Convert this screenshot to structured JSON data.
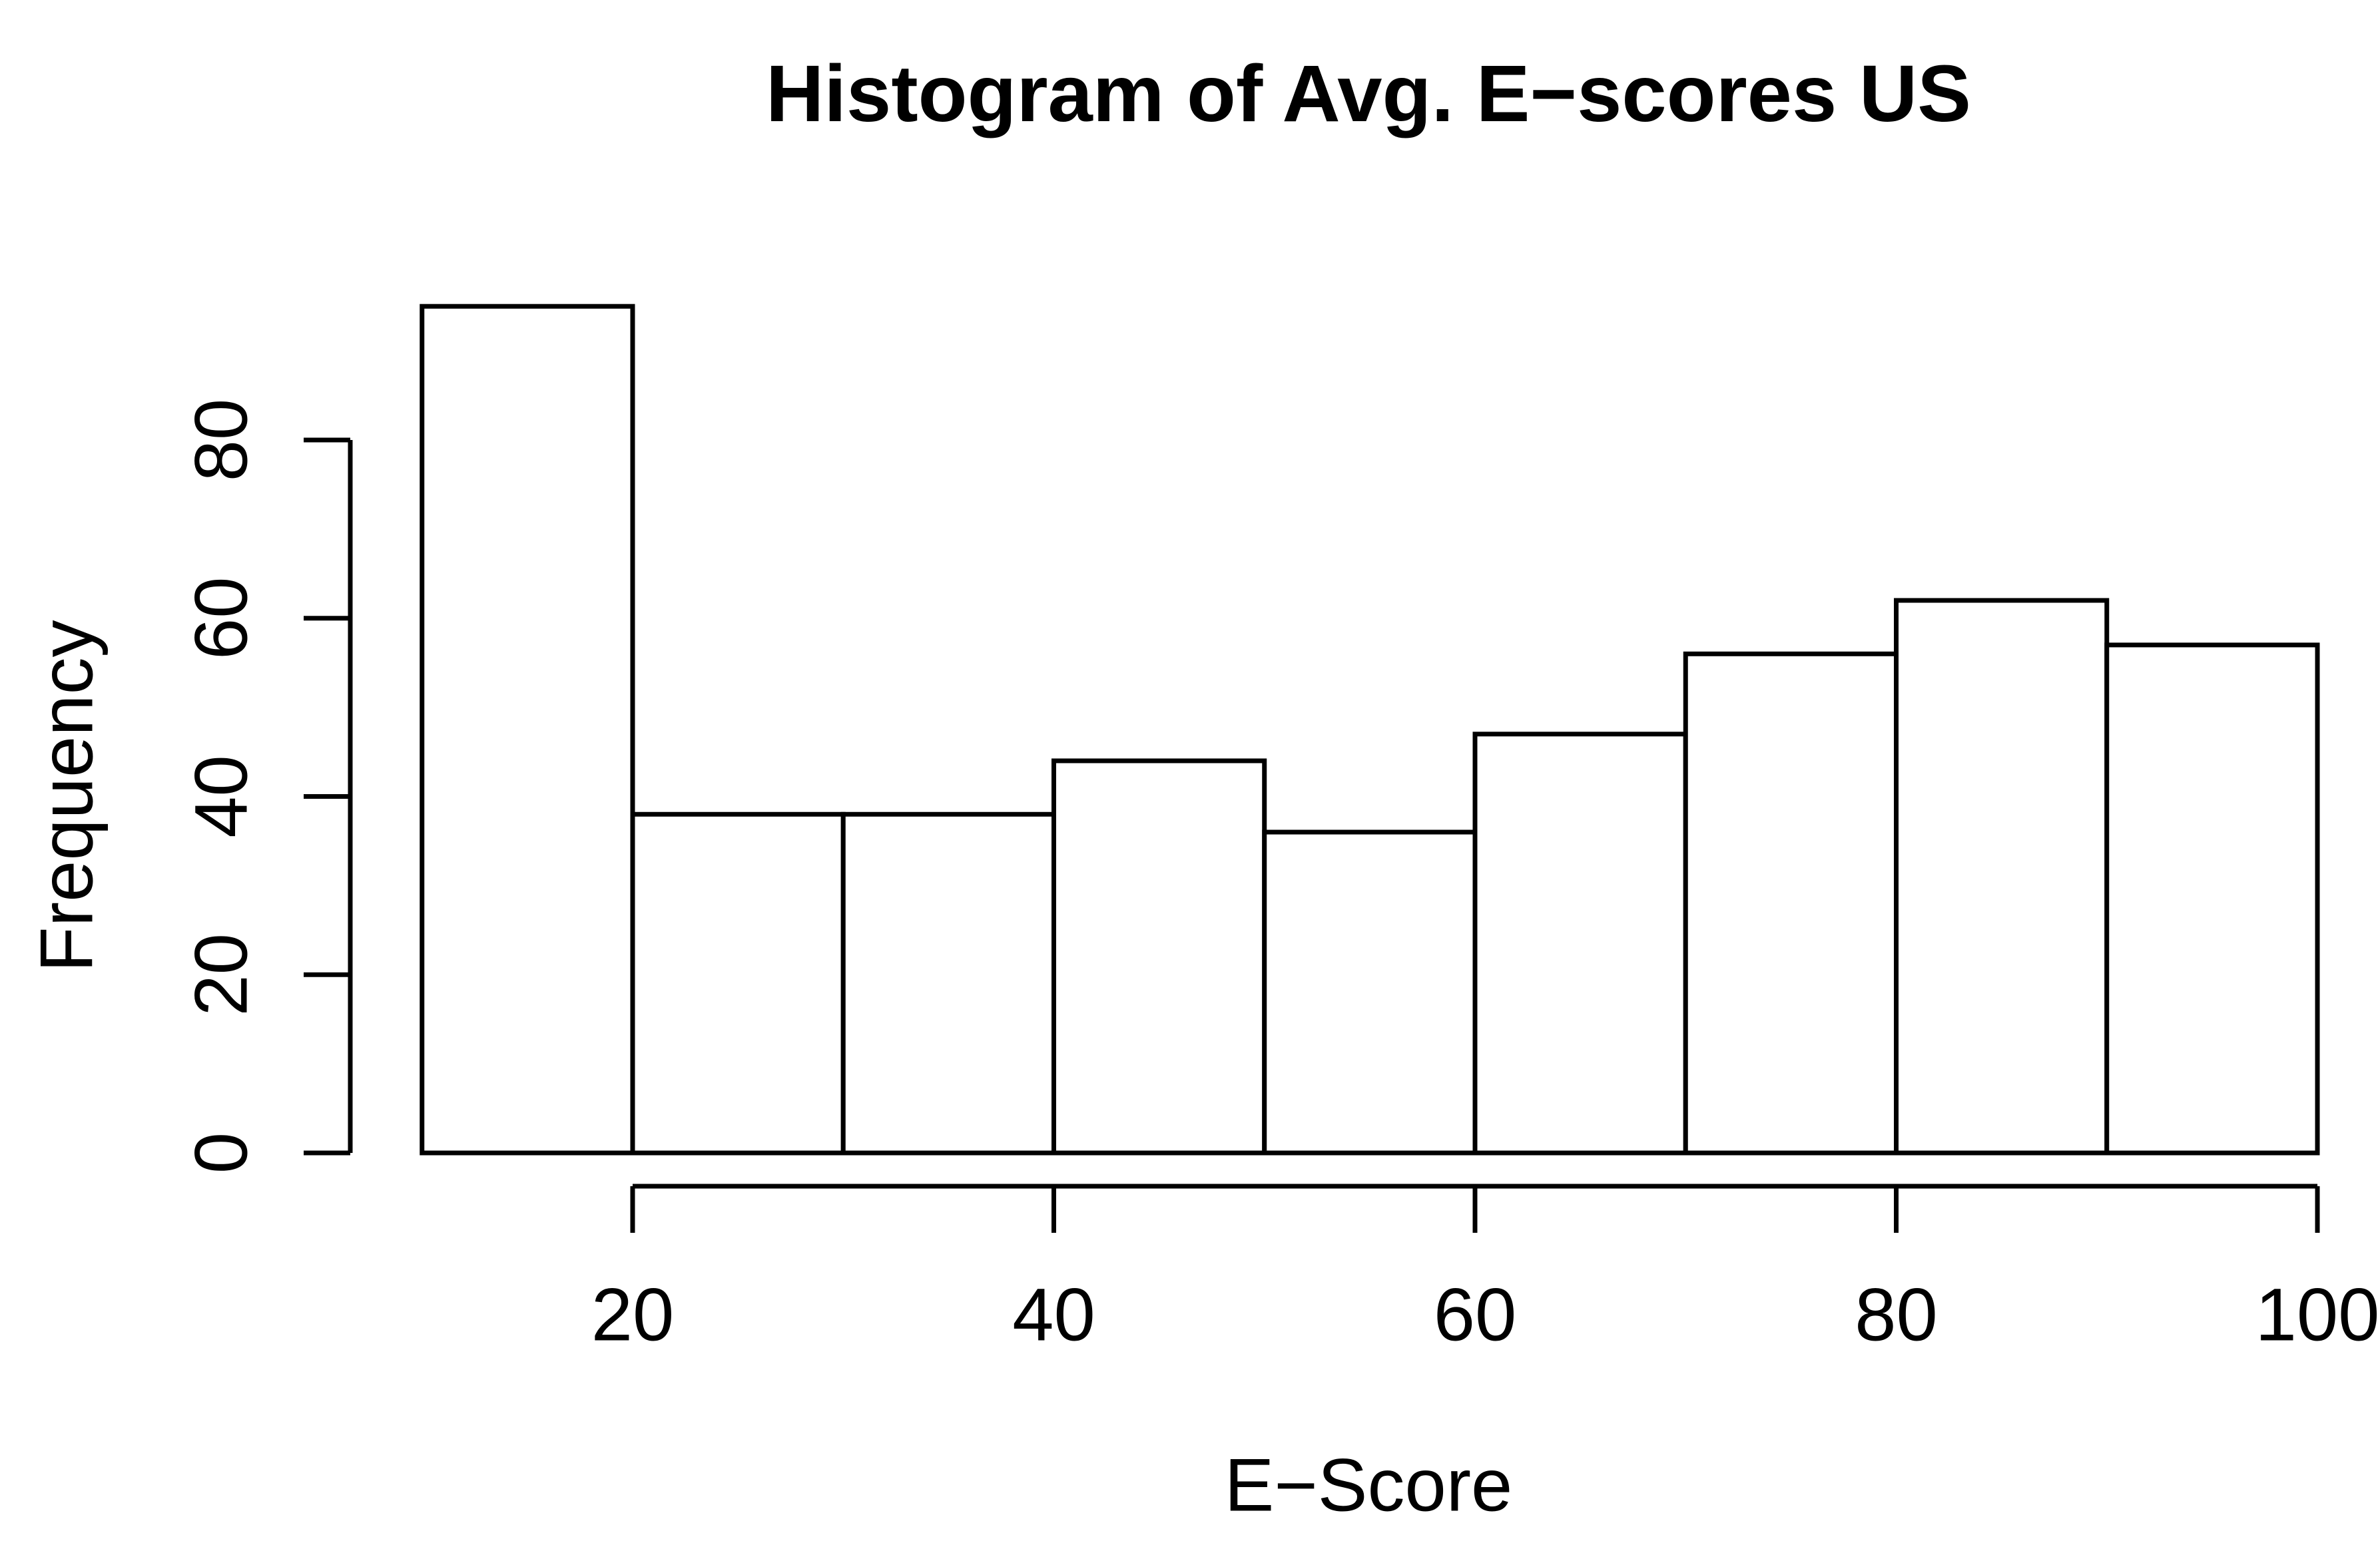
{
  "page": {
    "background_color": "#ffffff"
  },
  "chart_data": {
    "type": "bar",
    "subtype": "histogram",
    "title": "Histogram of Avg. E−scores US",
    "xlabel": "E−Score",
    "ylabel": "Frequency",
    "bin_edges": [
      10,
      20,
      30,
      40,
      50,
      60,
      70,
      80,
      90,
      100
    ],
    "counts": [
      95,
      38,
      38,
      44,
      36,
      47,
      56,
      62,
      57
    ],
    "x_tick_labels": [
      "20",
      "40",
      "60",
      "80",
      "100"
    ],
    "x_tick_values": [
      20,
      40,
      60,
      80,
      100
    ],
    "y_tick_labels": [
      "0",
      "20",
      "40",
      "60",
      "80"
    ],
    "y_tick_values": [
      0,
      20,
      40,
      60,
      80
    ],
    "xlim": [
      10,
      100
    ],
    "ylim": [
      0,
      95
    ],
    "grid": false,
    "legend": "none",
    "bar_fill_color": "#ffffff",
    "bar_stroke_color": "#000000",
    "axis_color": "#000000",
    "text_color": "#000000"
  }
}
